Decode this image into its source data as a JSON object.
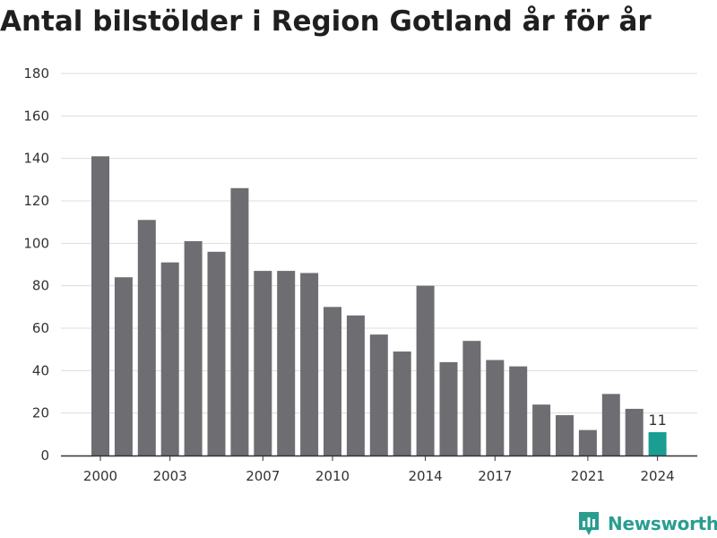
{
  "chart_data": {
    "type": "bar",
    "title": "Antal bilstölder i Region Gotland år för år",
    "xlabel": "",
    "ylabel": "",
    "categories": [
      "2000",
      "2001",
      "2002",
      "2003",
      "2004",
      "2005",
      "2006",
      "2007",
      "2008",
      "2009",
      "2010",
      "2011",
      "2012",
      "2013",
      "2014",
      "2015",
      "2016",
      "2017",
      "2018",
      "2019",
      "2020",
      "2021",
      "2022",
      "2023",
      "2024"
    ],
    "values": [
      141,
      84,
      111,
      91,
      101,
      96,
      126,
      87,
      87,
      86,
      70,
      66,
      57,
      49,
      80,
      44,
      54,
      45,
      42,
      24,
      19,
      12,
      29,
      22,
      11
    ],
    "x_tick_labels": [
      "2000",
      "2003",
      "2007",
      "2010",
      "2014",
      "2017",
      "2021",
      "2024"
    ],
    "ylim": [
      0,
      180
    ],
    "y_ticks": [
      0,
      20,
      40,
      60,
      80,
      100,
      120,
      140,
      160,
      180
    ],
    "grid": "horizontal",
    "highlight_index": 24,
    "highlight_label": "11",
    "colors": {
      "bar": "#6e6d72",
      "highlight": "#1a9e93",
      "grid": "#dddddd",
      "axis": "#333333"
    }
  },
  "branding": {
    "logo_text": "Newsworthy",
    "logo_color": "#2a9d8f",
    "logo_icon": "bar-chart-badge-icon"
  }
}
